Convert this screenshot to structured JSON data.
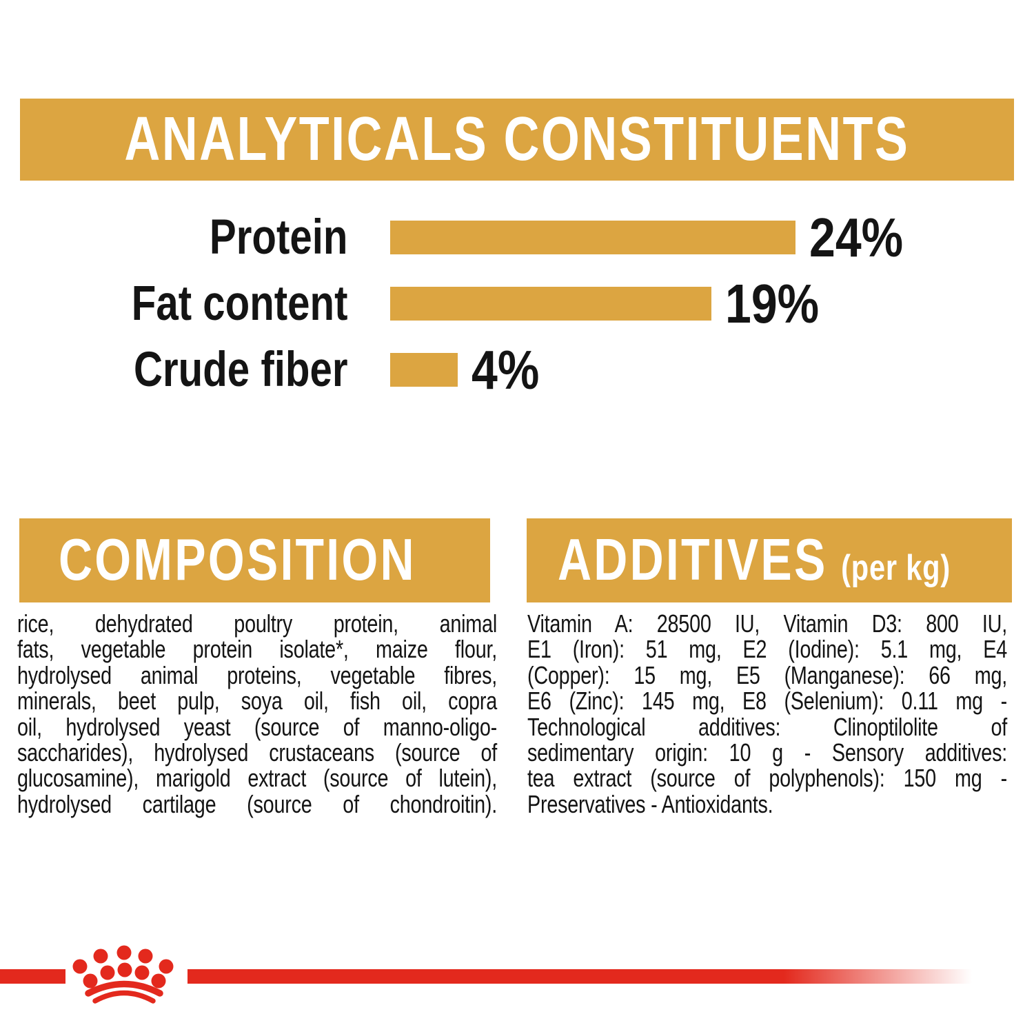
{
  "colors": {
    "gold": "#DCA541",
    "red": "#E3291D",
    "text": "#141414",
    "banner_text": "#FFFFFF"
  },
  "chart_data": {
    "type": "bar",
    "orientation": "horizontal",
    "title": "ANALYTICALS CONSTITUENTS",
    "categories": [
      "Protein",
      "Fat content",
      "Crude fiber"
    ],
    "values": [
      24,
      19,
      4
    ],
    "value_labels": [
      "24%",
      "19%",
      "4%"
    ],
    "unit": "percent",
    "xlim": [
      0,
      28
    ],
    "bar_color": "#DCA541",
    "grid": false,
    "legend": "none"
  },
  "composition": {
    "title": "COMPOSITION",
    "lines": [
      "rice, dehydrated poultry protein, animal",
      "fats, vegetable protein isolate*, maize flour,",
      "hydrolysed animal proteins, vegetable fibres,",
      "minerals, beet pulp, soya oil, fish oil, copra",
      "oil, hydrolysed yeast (source of manno-oligo-",
      "saccharides), hydrolysed crustaceans (source of",
      "glucosamine), marigold extract (source of lutein),",
      "hydrolysed cartilage (source of chondroitin)."
    ]
  },
  "additives": {
    "title": "ADDITIVES",
    "title_suffix": "(per kg)",
    "lines": [
      "Vitamin A: 28500 IU, Vitamin D3: 800 IU,",
      "E1 (Iron): 51 mg, E2 (Iodine): 5.1 mg, E4",
      "(Copper): 15 mg, E5 (Manganese): 66 mg,",
      "E6 (Zinc): 145 mg, E8 (Selenium): 0.11 mg -",
      "Technological additives: Clinoptilolite of",
      "sedimentary origin: 10 g - Sensory additives:",
      "tea extract (source of polyphenols): 150 mg -",
      "Preservatives - Antioxidants."
    ]
  },
  "footer": {
    "brand_mark": "royal-canin-crown"
  }
}
